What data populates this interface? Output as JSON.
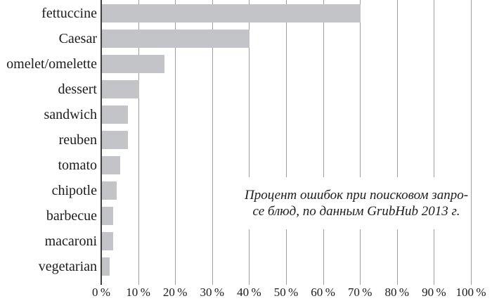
{
  "chart_data": {
    "type": "bar",
    "orientation": "horizontal",
    "title": "",
    "categories": [
      "fettuccine",
      "Caesar",
      "omelet/omelette",
      "dessert",
      "sandwich",
      "reuben",
      "tomato",
      "chipotle",
      "barbecue",
      "macaroni",
      "vegetarian"
    ],
    "values": [
      70,
      40,
      17,
      10,
      7,
      7,
      5,
      4,
      3,
      3,
      2
    ],
    "value_unit": "%",
    "xlabel": "",
    "ylabel": "",
    "xlim": [
      0,
      100
    ],
    "x_tick_step": 10,
    "x_tick_labels": [
      "0 %",
      "10 %",
      "20 %",
      "30 %",
      "40 %",
      "50 %",
      "60 %",
      "70 %",
      "80 %",
      "90 %",
      "100 %"
    ],
    "grid": "vertical-gridlines-on",
    "legend": "none",
    "annotation": {
      "lines": [
        "Процент ошибок при поисковом запро-",
        "се блюд, по данным GrubHub 2013 г."
      ],
      "full_text": "Процент ошибок при поисковом запросе блюд, по данным GrubHub 2013 г."
    },
    "colors": {
      "bar": "#c2c4c8",
      "gridline": "#9e9ea0",
      "axis": "#3f3f3f",
      "text": "#1c1c1c",
      "background": "#ffffff"
    }
  }
}
